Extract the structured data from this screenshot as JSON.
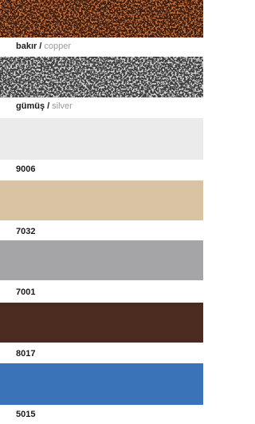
{
  "swatches": [
    {
      "name": "bakır",
      "separator": "/",
      "alt": "copper",
      "color": "#3a1c10",
      "accent": "#c8703a"
    },
    {
      "name": "gümüş",
      "separator": "/",
      "alt": "silver",
      "color": "#3c3c3c",
      "accent": "#d8d8d8"
    },
    {
      "name": "9006",
      "color": "#ebebeb"
    },
    {
      "name": "7032",
      "color": "#d8c4a2"
    },
    {
      "name": "7001",
      "color": "#a5a5a7"
    },
    {
      "name": "8017",
      "color": "#4b2a20"
    },
    {
      "name": "5015",
      "color": "#3a73b8"
    }
  ]
}
